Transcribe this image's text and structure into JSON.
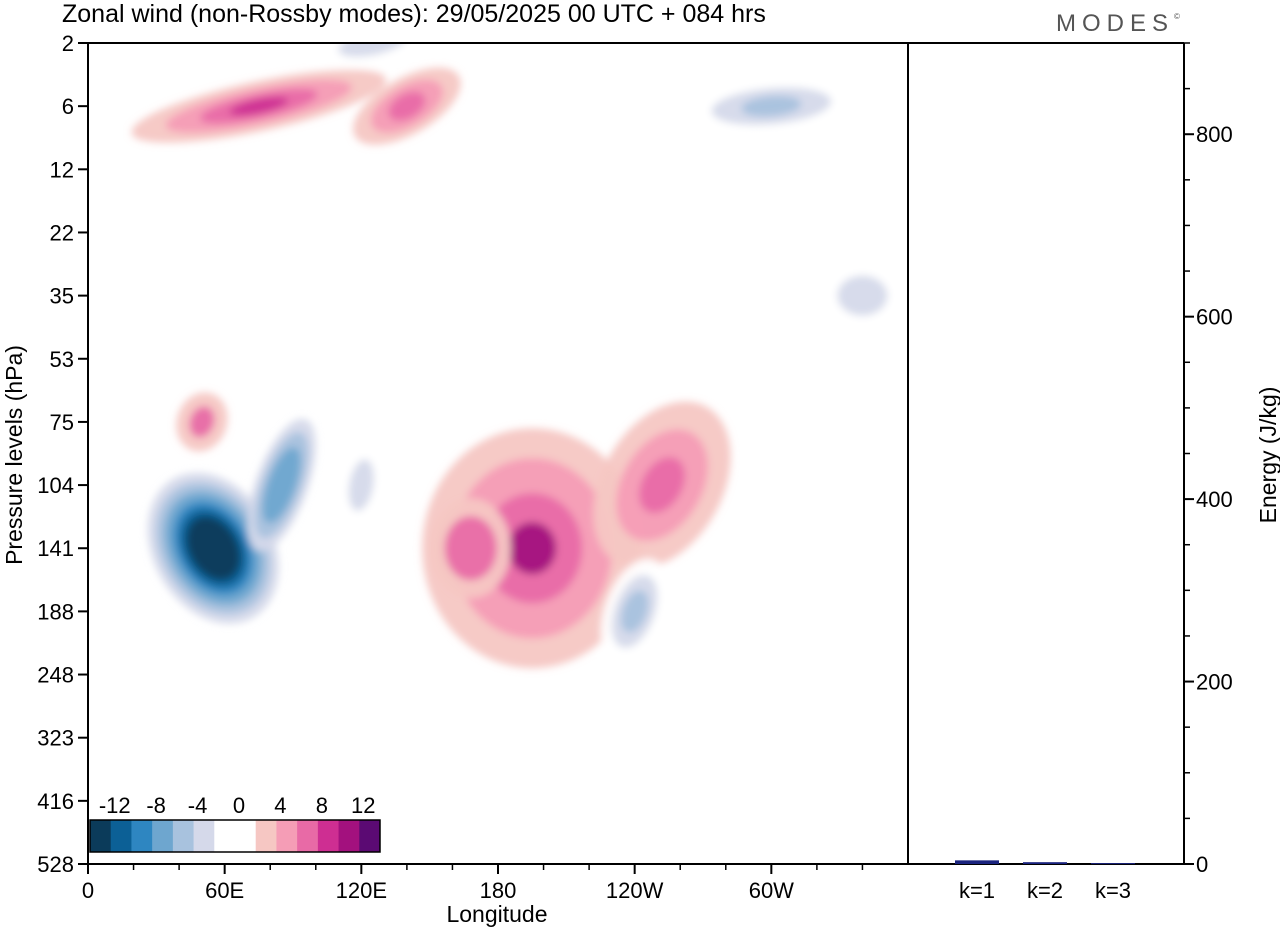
{
  "header": {
    "title": "Zonal wind (non-Rossby modes):  29/05/2025  00 UTC  + 084 hrs",
    "brand": "MODES",
    "brand_mark": "©"
  },
  "colors": {
    "colorbar": [
      "#0b3b5a",
      "#0c6096",
      "#2e86c1",
      "#6ea6cf",
      "#a8c2de",
      "#d5d9ea",
      "#ffffff",
      "#ffffff",
      "#f6c7c3",
      "#f59db6",
      "#e86aa6",
      "#ce2e92",
      "#a3117e",
      "#5b0a73"
    ],
    "bar_fill": "#1a237e"
  },
  "chart_data": [
    {
      "type": "heatmap",
      "title": "Zonal wind (non-Rossby modes):  29/05/2025  00 UTC  + 084 hrs",
      "xlabel": "Longitude",
      "ylabel": "Pressure levels (hPa)",
      "x_ticks": [
        "0",
        "60E",
        "120E",
        "180",
        "120W",
        "60W"
      ],
      "y_ticks": [
        "2",
        "6",
        "12",
        "22",
        "35",
        "53",
        "75",
        "104",
        "141",
        "188",
        "248",
        "323",
        "416",
        "528"
      ],
      "colorbar_labels": [
        "-12",
        "-8",
        "-4",
        "0",
        "4",
        "8",
        "12"
      ],
      "features": [
        {
          "lon": 55,
          "level": "141",
          "value": -14
        },
        {
          "lon": 85,
          "level": "104",
          "value": -8
        },
        {
          "lon": 120,
          "level": "104",
          "value": -4
        },
        {
          "lon": 195,
          "level": "141",
          "value": 10
        },
        {
          "lon": 168,
          "level": "141",
          "value": 6
        },
        {
          "lon": 252,
          "level": "104",
          "value": 6
        },
        {
          "lon": 240,
          "level": "188",
          "value": -6
        },
        {
          "lon": 75,
          "level": "6",
          "value": 8
        },
        {
          "lon": 140,
          "level": "6",
          "value": 6
        },
        {
          "lon": 300,
          "level": "6",
          "value": -6
        },
        {
          "lon": 125,
          "level": "2",
          "value": -4
        },
        {
          "lon": 50,
          "level": "75",
          "value": 6
        },
        {
          "lon": 340,
          "level": "35",
          "value": -4
        }
      ]
    },
    {
      "type": "bar",
      "categories": [
        "k=1",
        "k=2",
        "k=3"
      ],
      "values": [
        4,
        2,
        1
      ],
      "ylabel": "Energy (J/kg)",
      "y_ticks": [
        "0",
        "200",
        "400",
        "600",
        "800"
      ],
      "ylim": [
        0,
        900
      ]
    }
  ]
}
